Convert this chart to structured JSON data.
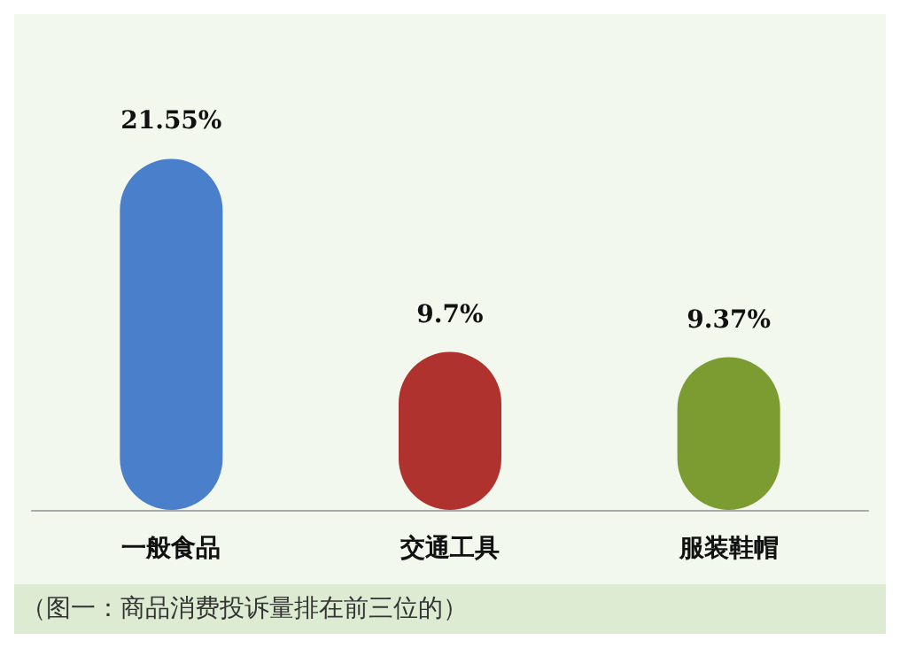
{
  "chart_data": {
    "type": "bar",
    "categories": [
      "一般食品",
      "交通工具",
      "服装鞋帽"
    ],
    "values": [
      21.55,
      9.7,
      9.37
    ],
    "colors": [
      "#4a7fcb",
      "#b0322e",
      "#7c9c32"
    ],
    "value_labels": [
      "21.55%",
      "9.7%",
      "9.37%"
    ],
    "annotations": [
      "（图一：商品消费投诉量排在前三位的）"
    ]
  }
}
